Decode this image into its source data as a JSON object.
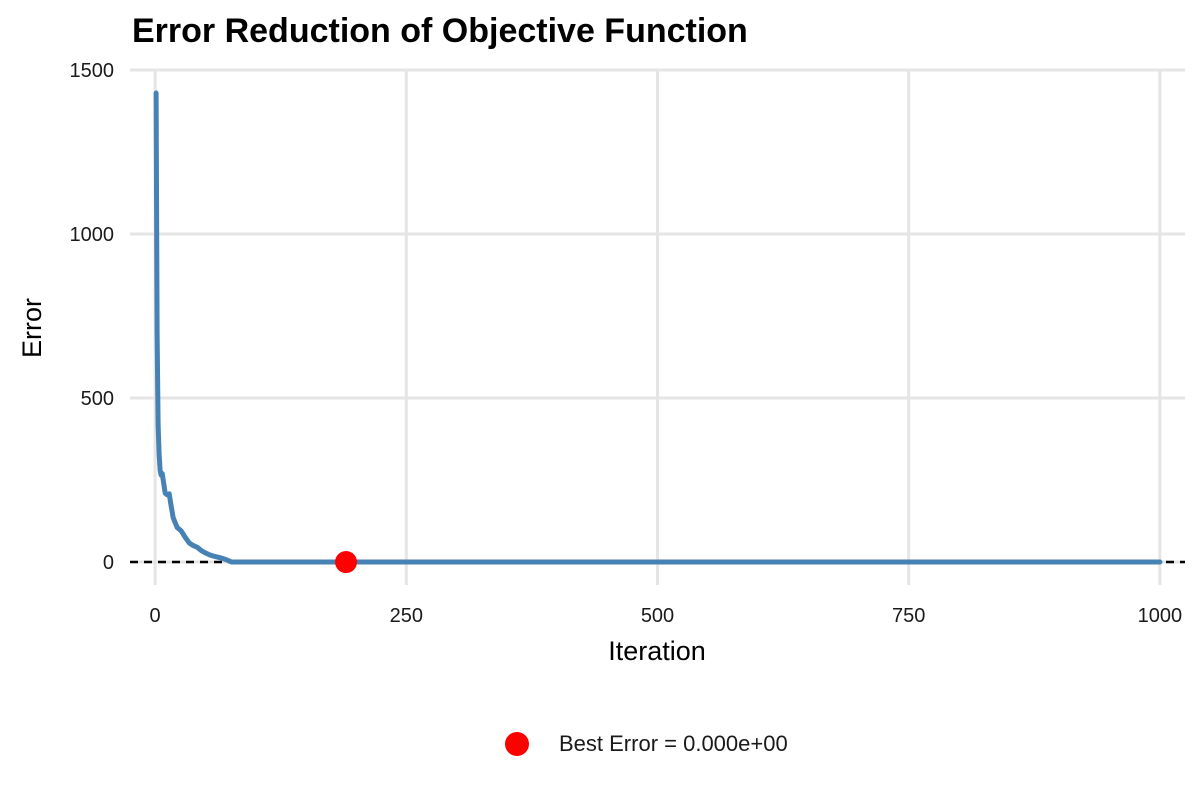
{
  "chart_data": {
    "type": "line",
    "title": "Error Reduction of Objective Function",
    "xlabel": "Iteration",
    "ylabel": "Error",
    "xlim": [
      -25,
      1025
    ],
    "ylim": [
      -70,
      1500
    ],
    "xticks": [
      0,
      250,
      500,
      750,
      1000
    ],
    "xtick_labels": [
      "0",
      "250",
      "500",
      "750",
      "1000"
    ],
    "yticks": [
      0,
      500,
      1000,
      1500
    ],
    "ytick_labels": [
      "0",
      "500",
      "1000",
      "1500"
    ],
    "grid": true,
    "reference_line": {
      "y": 0,
      "style": "dashed",
      "color": "#000000"
    },
    "series": [
      {
        "color": "#4682B4",
        "x": [
          1,
          2,
          3,
          4,
          5,
          6,
          7,
          8,
          10,
          12,
          14,
          16,
          18,
          20,
          22,
          24,
          26,
          30,
          34,
          38,
          42,
          46,
          50,
          54,
          58,
          62,
          66,
          70,
          74,
          76,
          100,
          150,
          200,
          300,
          400,
          500,
          600,
          700,
          800,
          900,
          1000
        ],
        "y": [
          1430,
          700,
          420,
          330,
          280,
          265,
          270,
          250,
          210,
          205,
          208,
          170,
          135,
          120,
          105,
          100,
          95,
          75,
          58,
          50,
          45,
          35,
          28,
          22,
          18,
          15,
          12,
          8,
          3,
          0,
          0,
          0,
          0,
          0,
          0,
          0,
          0,
          0,
          0,
          0,
          0
        ]
      }
    ],
    "best_point": {
      "x": 190,
      "y": 0,
      "color": "#FF0000"
    },
    "legend": {
      "position": "bottom",
      "entries": [
        {
          "label": "Best Error = 0.000e+00",
          "color": "#FF0000"
        }
      ]
    }
  }
}
